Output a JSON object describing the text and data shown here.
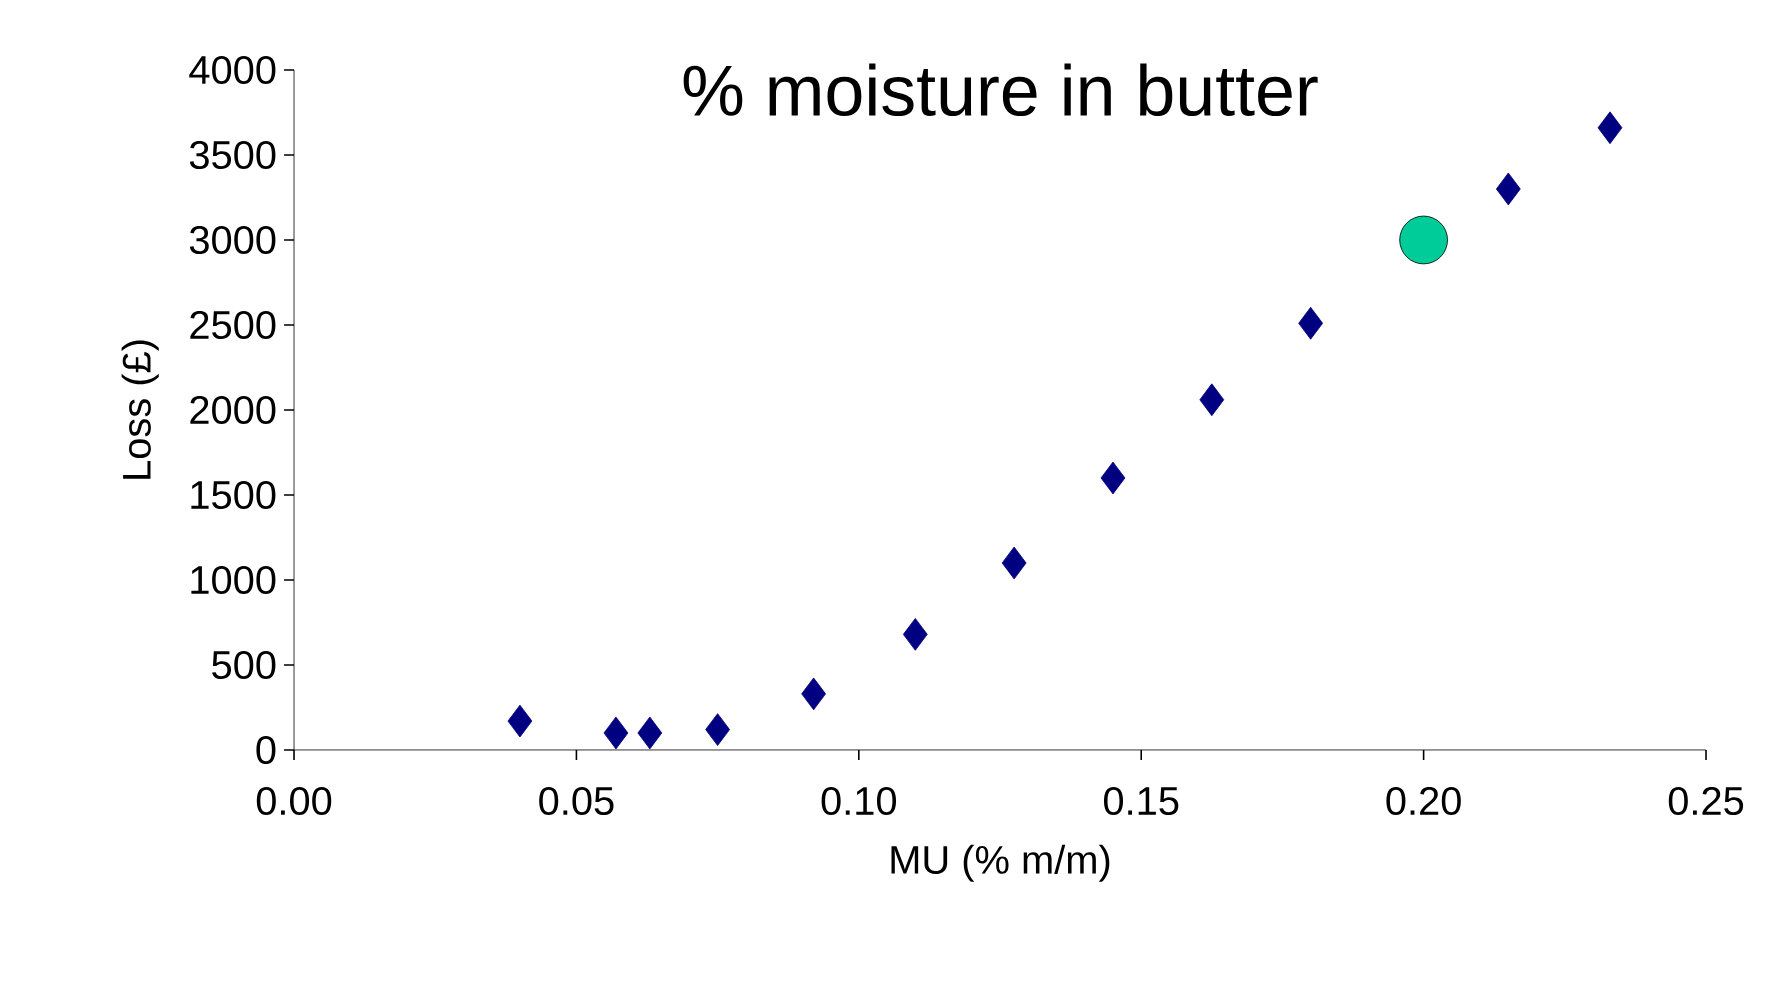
{
  "chart_data": {
    "type": "scatter",
    "title": "% moisture in butter",
    "xlabel": "MU (% m/m)",
    "ylabel": "Loss (£)",
    "xlim": [
      0,
      0.25
    ],
    "xticks": [
      {
        "value": 0,
        "label": "0.00"
      },
      {
        "value": 0.05,
        "label": "0.05"
      },
      {
        "value": 0.1,
        "label": "0.10"
      },
      {
        "value": 0.15,
        "label": "0.15"
      },
      {
        "value": 0.2,
        "label": "0.20"
      },
      {
        "value": 0.25,
        "label": "0.25"
      }
    ],
    "ylim": [
      0,
      4000
    ],
    "yticks": [
      0,
      500,
      1000,
      1500,
      2000,
      2500,
      3000,
      3500,
      4000
    ],
    "grid": false,
    "series": [
      {
        "color": "#000080",
        "marker": "diamond",
        "x": [
          0.04,
          0.057,
          0.063,
          0.075,
          0.092,
          0.11,
          0.1275,
          0.145,
          0.1625,
          0.18,
          0.215,
          0.233
        ],
        "values": [
          170,
          100,
          100,
          120,
          330,
          680,
          1100,
          1600,
          2060,
          2510,
          3300,
          3660
        ]
      },
      {
        "color": "#00cc99",
        "marker": "circle",
        "x": [
          0.2
        ],
        "values": [
          3000
        ]
      }
    ]
  }
}
